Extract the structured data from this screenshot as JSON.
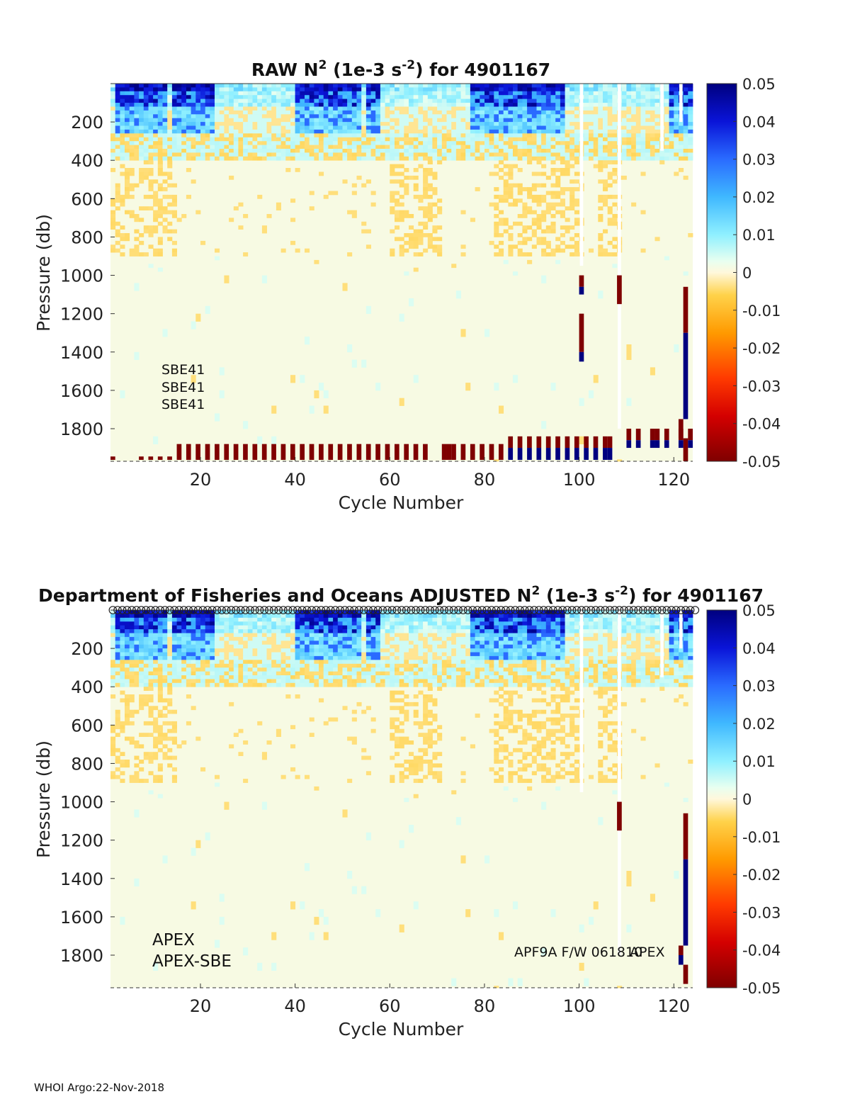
{
  "footer": {
    "prefix": "WHOI Argo:",
    "date": "22-Nov-2018"
  },
  "chart_data": [
    {
      "type": "heatmap",
      "title_prefix": "RAW N",
      "title_sup1": "2",
      "title_mid": " (1e-3 s",
      "title_sup2": "-2",
      "title_suffix": ") for 4901167",
      "xlabel": "Cycle Number",
      "ylabel": "Pressure (db)",
      "xlim": [
        1,
        124
      ],
      "ylim": [
        0,
        1970
      ],
      "xticks": [
        20,
        40,
        60,
        80,
        100,
        120
      ],
      "yticks": [
        200,
        400,
        600,
        800,
        1000,
        1200,
        1400,
        1600,
        1800
      ],
      "colorbar": {
        "min": -0.05,
        "max": 0.05,
        "ticks": [
          "0.05",
          "0.04",
          "0.03",
          "0.02",
          "0.01",
          "0",
          "-0.01",
          "-0.02",
          "-0.03",
          "-0.04",
          "-0.05"
        ]
      },
      "annotations": [
        {
          "text": "SBE41"
        },
        {
          "text": "SBE41"
        },
        {
          "text": "SBE41"
        }
      ],
      "surface_bands": [
        [
          2,
          12
        ],
        [
          14,
          22
        ],
        [
          40,
          53
        ],
        [
          55,
          57
        ],
        [
          77,
          96
        ],
        [
          119,
          124
        ]
      ],
      "deep_bands": [
        [
          1,
          14
        ],
        [
          60,
          70
        ],
        [
          82,
          100
        ],
        [
          104,
          108
        ]
      ],
      "white_gaps": [
        [
          100,
          0,
          950
        ],
        [
          108,
          0,
          1800
        ],
        [
          117,
          0,
          350
        ],
        [
          121,
          0,
          200
        ]
      ],
      "spikes": [
        {
          "cycle": 100,
          "p0": 1000,
          "p1": 1060,
          "value": -0.05
        },
        {
          "cycle": 100,
          "p0": 1060,
          "p1": 1100,
          "value": 0.05
        },
        {
          "cycle": 100,
          "p0": 1200,
          "p1": 1400,
          "value": -0.05
        },
        {
          "cycle": 100,
          "p0": 1400,
          "p1": 1450,
          "value": 0.05
        },
        {
          "cycle": 108,
          "p0": 1000,
          "p1": 1150,
          "value": -0.05
        },
        {
          "cycle": 122,
          "p0": 1060,
          "p1": 1300,
          "value": -0.05
        },
        {
          "cycle": 122,
          "p0": 1300,
          "p1": 1750,
          "value": 0.05
        },
        {
          "cycle": 121,
          "p0": 1750,
          "p1": 1850,
          "value": -0.05
        },
        {
          "cycle": 122,
          "p0": 1850,
          "p1": 1970,
          "value": -0.05
        }
      ],
      "bottom_red": [
        1,
        7,
        9,
        11,
        13,
        15,
        17,
        19,
        21,
        23,
        25,
        27,
        29,
        31,
        33,
        35,
        37,
        39,
        41,
        43,
        45,
        47,
        49,
        51,
        53,
        55,
        57,
        59,
        61,
        63,
        65,
        67,
        71,
        72,
        73,
        75,
        77,
        79,
        81,
        83
      ],
      "bottom_pairs": [
        85,
        87,
        89,
        91,
        93,
        95,
        97,
        99,
        101,
        103,
        105,
        106
      ],
      "bottom_pairs_late": [
        110,
        112,
        115,
        116,
        118,
        121,
        123
      ],
      "top_markers": false
    },
    {
      "type": "heatmap",
      "title_prefix": "Department of Fisheries and Oceans  ADJUSTED N",
      "title_sup1": "2",
      "title_mid": " (1e-3 s",
      "title_sup2": "-2",
      "title_suffix": ") for 4901167",
      "xlabel": "Cycle Number",
      "ylabel": "Pressure (db)",
      "xlim": [
        1,
        124
      ],
      "ylim": [
        0,
        1970
      ],
      "xticks": [
        20,
        40,
        60,
        80,
        100,
        120
      ],
      "yticks": [
        200,
        400,
        600,
        800,
        1000,
        1200,
        1400,
        1600,
        1800
      ],
      "colorbar": {
        "min": -0.05,
        "max": 0.05,
        "ticks": [
          "0.05",
          "0.04",
          "0.03",
          "0.02",
          "0.01",
          "0",
          "-0.01",
          "-0.02",
          "-0.03",
          "-0.04",
          "-0.05"
        ]
      },
      "annotations": [
        {
          "text": "APEX"
        },
        {
          "text": "APEX-SBE"
        },
        {
          "text": "APF9A F/W 061810"
        },
        {
          "text": "APEX"
        }
      ],
      "surface_bands": [
        [
          2,
          12
        ],
        [
          14,
          22
        ],
        [
          40,
          53
        ],
        [
          55,
          57
        ],
        [
          77,
          96
        ],
        [
          119,
          124
        ]
      ],
      "deep_bands": [
        [
          1,
          14
        ],
        [
          60,
          70
        ],
        [
          82,
          100
        ],
        [
          104,
          108
        ]
      ],
      "white_gaps": [
        [
          100,
          0,
          950
        ],
        [
          108,
          0,
          1800
        ],
        [
          117,
          0,
          350
        ],
        [
          121,
          0,
          200
        ]
      ],
      "spikes": [
        {
          "cycle": 108,
          "p0": 1000,
          "p1": 1150,
          "value": -0.05
        },
        {
          "cycle": 122,
          "p0": 1060,
          "p1": 1300,
          "value": -0.05
        },
        {
          "cycle": 122,
          "p0": 1300,
          "p1": 1750,
          "value": 0.05
        },
        {
          "cycle": 121,
          "p0": 1750,
          "p1": 1800,
          "value": -0.05
        },
        {
          "cycle": 121,
          "p0": 1800,
          "p1": 1850,
          "value": 0.05
        },
        {
          "cycle": 122,
          "p0": 1850,
          "p1": 1950,
          "value": -0.05
        }
      ],
      "bottom_red": [],
      "bottom_pairs": [],
      "bottom_pairs_late": [],
      "top_markers": true
    }
  ]
}
